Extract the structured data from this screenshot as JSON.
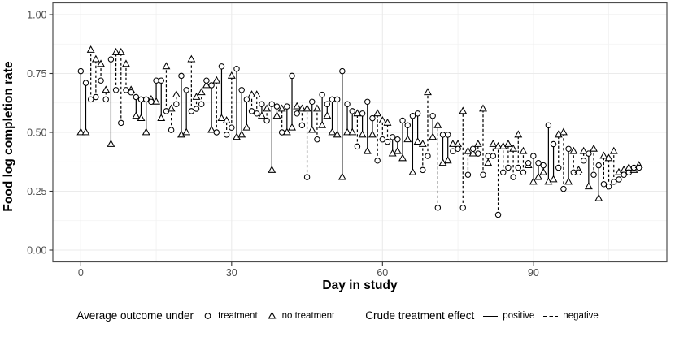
{
  "legend": {
    "outcome_title": "Average outcome under",
    "treatment_label": "treatment",
    "no_treatment_label": "no treatment",
    "effect_title": "Crude treatment effect",
    "positive_label": "positive",
    "negative_label": "negative"
  },
  "colors": {
    "marker": "#000000",
    "segment": "#000000",
    "grid_major": "#ebebeb",
    "grid_minor": "#f2f2f2",
    "panel_border": "#4d4d4d",
    "tick_mark": "#333333",
    "tick_label": "#4d4d4d",
    "background": "#ffffff"
  },
  "chart_data": {
    "type": "scatter",
    "title": "",
    "xlabel": "Day in study",
    "ylabel": "Food log completion rate",
    "xlim": [
      -5.55,
      116.55
    ],
    "ylim": [
      -0.05,
      1.05
    ],
    "x_major_ticks": [
      0,
      30,
      60,
      90
    ],
    "x_tick_labels": [
      "0",
      "30",
      "60",
      "90"
    ],
    "x_minor_gridlines": [
      15,
      45,
      75,
      105
    ],
    "y_major_ticks": [
      0,
      0.25,
      0.5,
      0.75,
      1.0
    ],
    "y_tick_labels": [
      "0.00",
      "0.25",
      "0.50",
      "0.75",
      "1.00"
    ],
    "y_minor_gridlines": [
      0.125,
      0.375,
      0.625,
      0.875
    ],
    "grid": true,
    "legend_position": "bottom",
    "segment_rule": "solid segment when treatment >= no treatment (positive crude effect), dashed when negative",
    "days": [
      0,
      1,
      2,
      3,
      4,
      5,
      6,
      7,
      8,
      9,
      10,
      11,
      12,
      13,
      14,
      15,
      16,
      17,
      18,
      19,
      20,
      21,
      22,
      23,
      24,
      25,
      26,
      27,
      28,
      29,
      30,
      31,
      32,
      33,
      34,
      35,
      36,
      37,
      38,
      39,
      40,
      41,
      42,
      43,
      44,
      45,
      46,
      47,
      48,
      49,
      50,
      51,
      52,
      53,
      54,
      55,
      56,
      57,
      58,
      59,
      60,
      61,
      62,
      63,
      64,
      65,
      66,
      67,
      68,
      69,
      70,
      71,
      72,
      73,
      74,
      75,
      76,
      77,
      78,
      79,
      80,
      81,
      82,
      83,
      84,
      85,
      86,
      87,
      88,
      89,
      90,
      91,
      92,
      93,
      94,
      95,
      96,
      97,
      98,
      99,
      100,
      101,
      102,
      103,
      104,
      105,
      106,
      107,
      108,
      109,
      110,
      111
    ],
    "series": [
      {
        "name": "treatment",
        "marker": "circle",
        "values": [
          0.76,
          0.71,
          0.64,
          0.65,
          0.72,
          0.64,
          0.81,
          0.68,
          0.54,
          0.68,
          0.67,
          0.65,
          0.64,
          0.64,
          0.63,
          0.72,
          0.72,
          0.59,
          0.51,
          0.62,
          0.74,
          0.68,
          0.59,
          0.6,
          0.62,
          0.72,
          0.7,
          0.5,
          0.78,
          0.49,
          0.52,
          0.77,
          0.68,
          0.64,
          0.59,
          0.58,
          0.62,
          0.55,
          0.62,
          0.61,
          0.5,
          0.61,
          0.74,
          0.58,
          0.53,
          0.31,
          0.63,
          0.47,
          0.66,
          0.62,
          0.64,
          0.64,
          0.76,
          0.62,
          0.59,
          0.44,
          0.58,
          0.63,
          0.56,
          0.38,
          0.47,
          0.46,
          0.48,
          0.47,
          0.55,
          0.53,
          0.57,
          0.58,
          0.34,
          0.4,
          0.57,
          0.18,
          0.49,
          0.49,
          0.42,
          0.43,
          0.18,
          0.32,
          0.43,
          0.41,
          0.32,
          0.4,
          0.4,
          0.15,
          0.33,
          0.35,
          0.31,
          0.35,
          0.33,
          0.37,
          0.4,
          0.37,
          0.36,
          0.53,
          0.45,
          0.35,
          0.26,
          0.43,
          0.33,
          0.33,
          0.38,
          0.41,
          0.32,
          0.36,
          0.28,
          0.27,
          0.29,
          0.3,
          0.32,
          0.33,
          0.35,
          0.35
        ]
      },
      {
        "name": "no treatment",
        "marker": "triangle",
        "values": [
          0.5,
          0.5,
          0.85,
          0.81,
          0.79,
          0.68,
          0.45,
          0.84,
          0.84,
          0.79,
          0.68,
          0.57,
          0.56,
          0.5,
          0.64,
          0.63,
          0.56,
          0.78,
          0.6,
          0.66,
          0.49,
          0.5,
          0.81,
          0.65,
          0.67,
          0.7,
          0.51,
          0.72,
          0.56,
          0.55,
          0.74,
          0.48,
          0.49,
          0.52,
          0.66,
          0.66,
          0.57,
          0.6,
          0.34,
          0.57,
          0.6,
          0.5,
          0.52,
          0.61,
          0.6,
          0.6,
          0.51,
          0.6,
          0.53,
          0.57,
          0.5,
          0.49,
          0.31,
          0.5,
          0.5,
          0.58,
          0.49,
          0.42,
          0.49,
          0.58,
          0.55,
          0.54,
          0.41,
          0.42,
          0.39,
          0.47,
          0.33,
          0.46,
          0.45,
          0.67,
          0.48,
          0.53,
          0.37,
          0.38,
          0.45,
          0.45,
          0.59,
          0.42,
          0.41,
          0.45,
          0.6,
          0.37,
          0.45,
          0.44,
          0.44,
          0.45,
          0.43,
          0.49,
          0.42,
          0.36,
          0.29,
          0.31,
          0.33,
          0.29,
          0.3,
          0.49,
          0.5,
          0.29,
          0.42,
          0.34,
          0.42,
          0.27,
          0.43,
          0.22,
          0.4,
          0.39,
          0.42,
          0.33,
          0.34,
          0.35,
          0.34,
          0.36
        ]
      }
    ]
  }
}
